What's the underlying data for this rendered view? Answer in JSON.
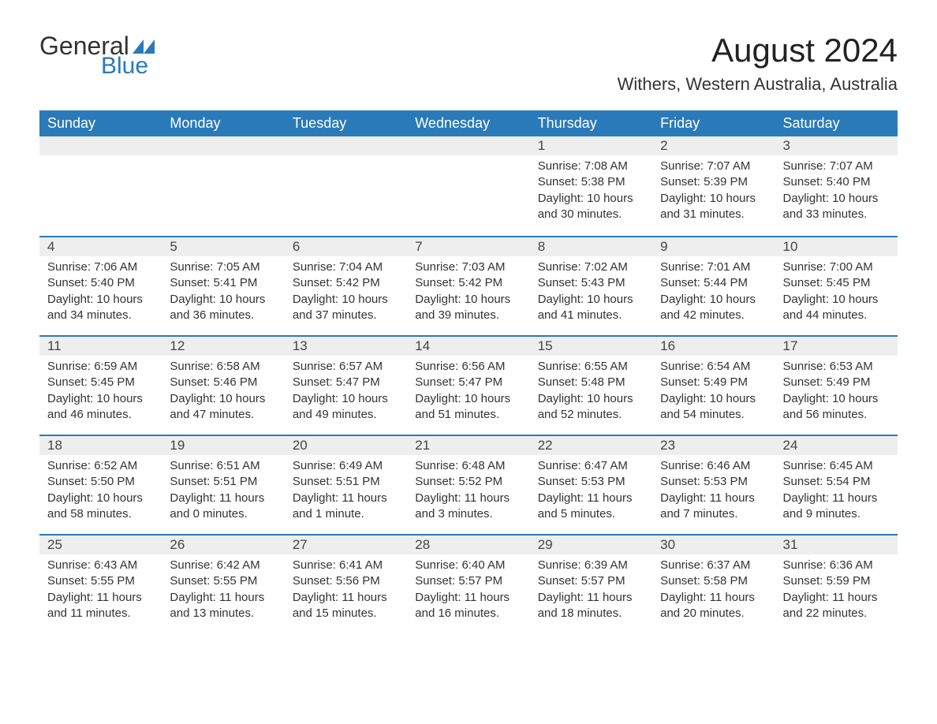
{
  "logo": {
    "text_general": "General",
    "text_blue": "Blue",
    "icon_color": "#2a7ab9"
  },
  "title": "August 2024",
  "location": "Withers, Western Australia, Australia",
  "colors": {
    "header_bg": "#2a7ab9",
    "header_text": "#ffffff",
    "daynum_bg": "#eeeeee",
    "row_border": "#2a7ab9",
    "body_text": "#333333",
    "page_bg": "#ffffff"
  },
  "font_sizes": {
    "title_pt": 42,
    "location_pt": 22,
    "weekday_pt": 18,
    "daynum_pt": 17,
    "cell_pt": 15
  },
  "weekdays": [
    "Sunday",
    "Monday",
    "Tuesday",
    "Wednesday",
    "Thursday",
    "Friday",
    "Saturday"
  ],
  "weeks": [
    [
      null,
      null,
      null,
      null,
      {
        "n": "1",
        "sunrise": "7:08 AM",
        "sunset": "5:38 PM",
        "daylight": "10 hours and 30 minutes."
      },
      {
        "n": "2",
        "sunrise": "7:07 AM",
        "sunset": "5:39 PM",
        "daylight": "10 hours and 31 minutes."
      },
      {
        "n": "3",
        "sunrise": "7:07 AM",
        "sunset": "5:40 PM",
        "daylight": "10 hours and 33 minutes."
      }
    ],
    [
      {
        "n": "4",
        "sunrise": "7:06 AM",
        "sunset": "5:40 PM",
        "daylight": "10 hours and 34 minutes."
      },
      {
        "n": "5",
        "sunrise": "7:05 AM",
        "sunset": "5:41 PM",
        "daylight": "10 hours and 36 minutes."
      },
      {
        "n": "6",
        "sunrise": "7:04 AM",
        "sunset": "5:42 PM",
        "daylight": "10 hours and 37 minutes."
      },
      {
        "n": "7",
        "sunrise": "7:03 AM",
        "sunset": "5:42 PM",
        "daylight": "10 hours and 39 minutes."
      },
      {
        "n": "8",
        "sunrise": "7:02 AM",
        "sunset": "5:43 PM",
        "daylight": "10 hours and 41 minutes."
      },
      {
        "n": "9",
        "sunrise": "7:01 AM",
        "sunset": "5:44 PM",
        "daylight": "10 hours and 42 minutes."
      },
      {
        "n": "10",
        "sunrise": "7:00 AM",
        "sunset": "5:45 PM",
        "daylight": "10 hours and 44 minutes."
      }
    ],
    [
      {
        "n": "11",
        "sunrise": "6:59 AM",
        "sunset": "5:45 PM",
        "daylight": "10 hours and 46 minutes."
      },
      {
        "n": "12",
        "sunrise": "6:58 AM",
        "sunset": "5:46 PM",
        "daylight": "10 hours and 47 minutes."
      },
      {
        "n": "13",
        "sunrise": "6:57 AM",
        "sunset": "5:47 PM",
        "daylight": "10 hours and 49 minutes."
      },
      {
        "n": "14",
        "sunrise": "6:56 AM",
        "sunset": "5:47 PM",
        "daylight": "10 hours and 51 minutes."
      },
      {
        "n": "15",
        "sunrise": "6:55 AM",
        "sunset": "5:48 PM",
        "daylight": "10 hours and 52 minutes."
      },
      {
        "n": "16",
        "sunrise": "6:54 AM",
        "sunset": "5:49 PM",
        "daylight": "10 hours and 54 minutes."
      },
      {
        "n": "17",
        "sunrise": "6:53 AM",
        "sunset": "5:49 PM",
        "daylight": "10 hours and 56 minutes."
      }
    ],
    [
      {
        "n": "18",
        "sunrise": "6:52 AM",
        "sunset": "5:50 PM",
        "daylight": "10 hours and 58 minutes."
      },
      {
        "n": "19",
        "sunrise": "6:51 AM",
        "sunset": "5:51 PM",
        "daylight": "11 hours and 0 minutes."
      },
      {
        "n": "20",
        "sunrise": "6:49 AM",
        "sunset": "5:51 PM",
        "daylight": "11 hours and 1 minute."
      },
      {
        "n": "21",
        "sunrise": "6:48 AM",
        "sunset": "5:52 PM",
        "daylight": "11 hours and 3 minutes."
      },
      {
        "n": "22",
        "sunrise": "6:47 AM",
        "sunset": "5:53 PM",
        "daylight": "11 hours and 5 minutes."
      },
      {
        "n": "23",
        "sunrise": "6:46 AM",
        "sunset": "5:53 PM",
        "daylight": "11 hours and 7 minutes."
      },
      {
        "n": "24",
        "sunrise": "6:45 AM",
        "sunset": "5:54 PM",
        "daylight": "11 hours and 9 minutes."
      }
    ],
    [
      {
        "n": "25",
        "sunrise": "6:43 AM",
        "sunset": "5:55 PM",
        "daylight": "11 hours and 11 minutes."
      },
      {
        "n": "26",
        "sunrise": "6:42 AM",
        "sunset": "5:55 PM",
        "daylight": "11 hours and 13 minutes."
      },
      {
        "n": "27",
        "sunrise": "6:41 AM",
        "sunset": "5:56 PM",
        "daylight": "11 hours and 15 minutes."
      },
      {
        "n": "28",
        "sunrise": "6:40 AM",
        "sunset": "5:57 PM",
        "daylight": "11 hours and 16 minutes."
      },
      {
        "n": "29",
        "sunrise": "6:39 AM",
        "sunset": "5:57 PM",
        "daylight": "11 hours and 18 minutes."
      },
      {
        "n": "30",
        "sunrise": "6:37 AM",
        "sunset": "5:58 PM",
        "daylight": "11 hours and 20 minutes."
      },
      {
        "n": "31",
        "sunrise": "6:36 AM",
        "sunset": "5:59 PM",
        "daylight": "11 hours and 22 minutes."
      }
    ]
  ],
  "labels": {
    "sunrise_prefix": "Sunrise: ",
    "sunset_prefix": "Sunset: ",
    "daylight_prefix": "Daylight: "
  }
}
